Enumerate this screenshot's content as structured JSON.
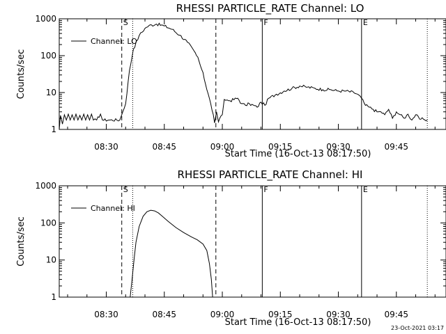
{
  "chart_data": [
    {
      "type": "line",
      "title": "RHESSI PARTICLE_RATE Channel: LO",
      "xlabel": "Start Time (16-Oct-13 08:17:50)",
      "ylabel": "Counts/sec",
      "yscale": "log",
      "ylim": [
        1,
        1000
      ],
      "yticks": [
        1,
        10,
        100,
        1000
      ],
      "ytick_labels": [
        "1",
        "10",
        "100",
        "1000"
      ],
      "xlim": [
        "08:17:50",
        "09:57:50"
      ],
      "xticks": [
        "08:30",
        "08:45",
        "09:00",
        "09:15",
        "09:30",
        "09:45"
      ],
      "legend": {
        "position": "top-left",
        "entries": [
          "Channel: LO"
        ]
      },
      "markers": [
        {
          "label": "S",
          "time": "08:34:00",
          "style": "dashed"
        },
        {
          "label": "",
          "time": "08:36:50",
          "style": "dotted"
        },
        {
          "label": "",
          "time": "08:58:20",
          "style": "dashed"
        },
        {
          "label": "F",
          "time": "09:10:20",
          "style": "solid"
        },
        {
          "label": "E",
          "time": "09:36:00",
          "style": "solid"
        },
        {
          "label": "",
          "time": "09:53:00",
          "style": "dotted"
        }
      ],
      "series": [
        {
          "name": "Channel: LO",
          "noise": 0.08,
          "points": [
            [
              "08:17:50",
              1.0
            ],
            [
              "08:18:10",
              2.4
            ],
            [
              "08:18:40",
              1.4
            ],
            [
              "08:19:10",
              2.5
            ],
            [
              "08:19:40",
              1.8
            ],
            [
              "08:20:10",
              2.6
            ],
            [
              "08:20:40",
              1.8
            ],
            [
              "08:21:10",
              2.5
            ],
            [
              "08:21:40",
              1.8
            ],
            [
              "08:22:10",
              2.6
            ],
            [
              "08:22:40",
              1.8
            ],
            [
              "08:23:10",
              2.4
            ],
            [
              "08:23:40",
              1.8
            ],
            [
              "08:24:10",
              2.6
            ],
            [
              "08:24:40",
              1.8
            ],
            [
              "08:25:10",
              2.5
            ],
            [
              "08:25:40",
              1.8
            ],
            [
              "08:26:10",
              2.6
            ],
            [
              "08:26:40",
              1.8
            ],
            [
              "08:27:30",
              1.8
            ],
            [
              "08:28:30",
              2.6
            ],
            [
              "08:29:00",
              1.8
            ],
            [
              "08:31:00",
              1.8
            ],
            [
              "08:33:30",
              1.8
            ],
            [
              "08:34:00",
              2.5
            ],
            [
              "08:35:00",
              5.0
            ],
            [
              "08:36:00",
              40.0
            ],
            [
              "08:37:00",
              150.0
            ],
            [
              "08:38:30",
              350.0
            ],
            [
              "08:40:00",
              550.0
            ],
            [
              "08:41:00",
              650.0
            ],
            [
              "08:43:00",
              720.0
            ],
            [
              "08:45:00",
              640.0
            ],
            [
              "08:47:00",
              520.0
            ],
            [
              "08:49:00",
              360.0
            ],
            [
              "08:51:00",
              230.0
            ],
            [
              "08:53:00",
              120.0
            ],
            [
              "08:54:00",
              70.0
            ],
            [
              "08:55:00",
              35.0
            ],
            [
              "08:56:00",
              12.0
            ],
            [
              "08:57:00",
              5.0
            ],
            [
              "08:57:40",
              2.5
            ],
            [
              "08:58:00",
              1.5
            ],
            [
              "08:58:30",
              3.0
            ],
            [
              "08:59:00",
              1.6
            ],
            [
              "09:00:00",
              2.5
            ],
            [
              "09:00:30",
              6.5
            ],
            [
              "09:02:00",
              6.0
            ],
            [
              "09:04:00",
              7.0
            ],
            [
              "09:05:00",
              5.0
            ],
            [
              "09:06:00",
              4.5
            ],
            [
              "09:07:00",
              5.0
            ],
            [
              "09:09:00",
              4.0
            ],
            [
              "09:10:00",
              5.5
            ],
            [
              "09:11:00",
              4.5
            ],
            [
              "09:12:00",
              7.0
            ],
            [
              "09:14:00",
              9.0
            ],
            [
              "09:16:00",
              11.0
            ],
            [
              "09:18:00",
              13.0
            ],
            [
              "09:20:00",
              15.0
            ],
            [
              "09:22:00",
              14.0
            ],
            [
              "09:24:00",
              13.0
            ],
            [
              "09:26:00",
              12.0
            ],
            [
              "09:28:00",
              12.0
            ],
            [
              "09:30:00",
              11.0
            ],
            [
              "09:32:00",
              11.0
            ],
            [
              "09:34:00",
              10.0
            ],
            [
              "09:35:00",
              9.0
            ],
            [
              "09:36:00",
              7.0
            ],
            [
              "09:37:00",
              4.5
            ],
            [
              "09:38:00",
              4.0
            ],
            [
              "09:39:00",
              3.5
            ],
            [
              "09:40:00",
              3.0
            ],
            [
              "09:41:00",
              3.0
            ],
            [
              "09:42:00",
              2.5
            ],
            [
              "09:43:00",
              3.5
            ],
            [
              "09:44:00",
              2.0
            ],
            [
              "09:45:00",
              3.0
            ],
            [
              "09:46:00",
              2.5
            ],
            [
              "09:47:00",
              2.0
            ],
            [
              "09:48:00",
              2.6
            ],
            [
              "09:49:00",
              1.8
            ],
            [
              "09:50:00",
              2.5
            ],
            [
              "09:51:00",
              1.9
            ],
            [
              "09:52:00",
              1.9
            ],
            [
              "09:53:00",
              1.8
            ]
          ]
        }
      ]
    },
    {
      "type": "line",
      "title": "RHESSI PARTICLE_RATE Channel: HI",
      "xlabel": "Start Time (16-Oct-13 08:17:50)",
      "ylabel": "Counts/sec",
      "yscale": "log",
      "ylim": [
        1,
        1000
      ],
      "yticks": [
        1,
        10,
        100,
        1000
      ],
      "ytick_labels": [
        "1",
        "10",
        "100",
        "1000"
      ],
      "xlim": [
        "08:17:50",
        "09:57:50"
      ],
      "xticks": [
        "08:30",
        "08:45",
        "09:00",
        "09:15",
        "09:30",
        "09:45"
      ],
      "legend": {
        "position": "top-left",
        "entries": [
          "Channel: HI"
        ]
      },
      "markers": [
        {
          "label": "S",
          "time": "08:34:00",
          "style": "dashed"
        },
        {
          "label": "",
          "time": "08:36:50",
          "style": "dotted"
        },
        {
          "label": "",
          "time": "08:58:20",
          "style": "dashed"
        },
        {
          "label": "F",
          "time": "09:10:20",
          "style": "solid"
        },
        {
          "label": "E",
          "time": "09:36:00",
          "style": "solid"
        },
        {
          "label": "",
          "time": "09:53:00",
          "style": "dotted"
        }
      ],
      "series": [
        {
          "name": "Channel: HI",
          "noise": 0,
          "points": [
            [
              "08:36:10",
              1.0
            ],
            [
              "08:36:40",
              3.0
            ],
            [
              "08:37:10",
              10.0
            ],
            [
              "08:37:40",
              30.0
            ],
            [
              "08:38:30",
              80.0
            ],
            [
              "08:39:30",
              150.0
            ],
            [
              "08:40:30",
              200.0
            ],
            [
              "08:41:30",
              220.0
            ],
            [
              "08:42:30",
              210.0
            ],
            [
              "08:43:30",
              185.0
            ],
            [
              "08:44:30",
              150.0
            ],
            [
              "08:46:00",
              110.0
            ],
            [
              "08:48:00",
              75.0
            ],
            [
              "08:50:00",
              55.0
            ],
            [
              "08:52:00",
              42.0
            ],
            [
              "08:53:30",
              35.0
            ],
            [
              "08:55:00",
              27.0
            ],
            [
              "08:56:00",
              18.0
            ],
            [
              "08:56:40",
              8.0
            ],
            [
              "08:57:10",
              3.0
            ],
            [
              "08:57:30",
              1.0
            ]
          ]
        }
      ]
    }
  ],
  "timestamp": "23-Oct-2021 03:17"
}
